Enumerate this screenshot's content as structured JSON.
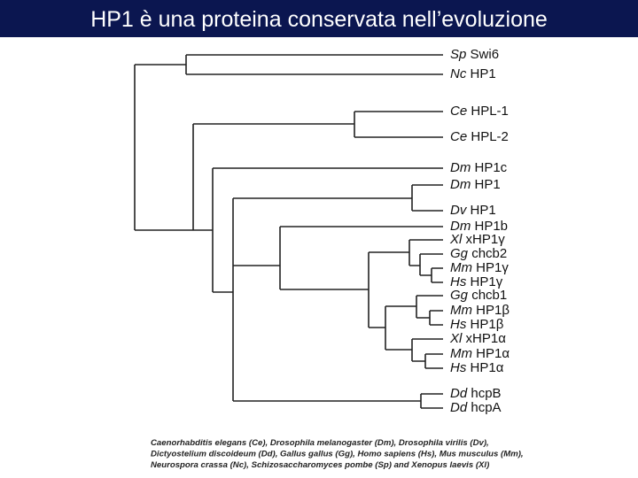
{
  "header": {
    "title": "HP1 è una proteina  conservata nell’evoluzione"
  },
  "tree": {
    "leaves": [
      {
        "species": "Sp",
        "gene": "Swi6"
      },
      {
        "species": "Nc",
        "gene": "HP1"
      },
      {
        "species": "Ce",
        "gene": "HPL-1"
      },
      {
        "species": "Ce",
        "gene": "HPL-2"
      },
      {
        "species": "Dm",
        "gene": "HP1c"
      },
      {
        "species": "Dm",
        "gene": "HP1"
      },
      {
        "species": "Dv",
        "gene": "HP1"
      },
      {
        "species": "Dm",
        "gene": "HP1b"
      },
      {
        "species": "Xl",
        "gene": "xHP1γ"
      },
      {
        "species": "Gg",
        "gene": "chcb2"
      },
      {
        "species": "Mm",
        "gene": "HP1γ"
      },
      {
        "species": "Hs",
        "gene": "HP1γ"
      },
      {
        "species": "Gg",
        "gene": "chcb1"
      },
      {
        "species": "Mm",
        "gene": "HP1β"
      },
      {
        "species": "Hs",
        "gene": "HP1β"
      },
      {
        "species": "Xl",
        "gene": "xHP1α"
      },
      {
        "species": "Mm",
        "gene": "HP1α"
      },
      {
        "species": "Hs",
        "gene": "HP1α"
      },
      {
        "species": "Dd",
        "gene": "hcpB"
      },
      {
        "species": "Dd",
        "gene": "hcpA"
      }
    ]
  },
  "caption": {
    "lines": [
      "Caenorhabditis elegans (Ce), Drosophila melanogaster (Dm), Drosophila virilis (Dv),",
      "Dictyostelium discoideum (Dd), Gallus gallus (Gg), Homo sapiens (Hs), Mus musculus (Mm),",
      "Neurospora crassa (Nc), Schizosaccharomyces pombe (Sp) and Xenopus laevis (Xl)"
    ]
  }
}
